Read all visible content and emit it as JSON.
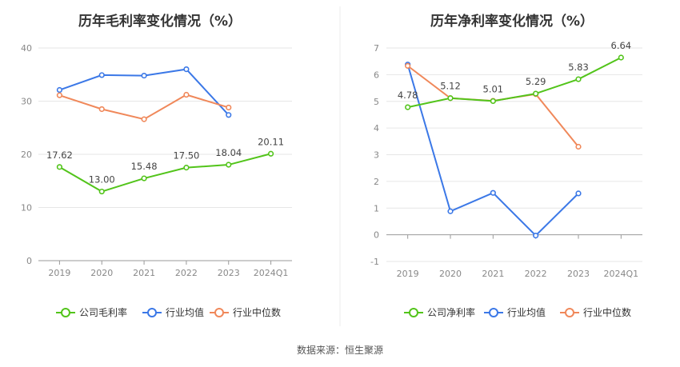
{
  "source": "数据来源：恒生聚源",
  "chart_data": [
    {
      "type": "line",
      "title": "历年毛利率变化情况（%）",
      "categories": [
        "2019",
        "2020",
        "2021",
        "2022",
        "2023",
        "2024Q1"
      ],
      "ylim": [
        0,
        40
      ],
      "yticks": [
        "0",
        "10",
        "20",
        "30",
        "40"
      ],
      "grid": true,
      "legend_position": "bottom",
      "series": [
        {
          "name": "公司毛利率",
          "color": "#52c41a",
          "values": [
            17.62,
            13.0,
            15.48,
            17.5,
            18.04,
            20.11
          ],
          "labels": [
            "17.62",
            "13.00",
            "15.48",
            "17.50",
            "18.04",
            "20.11"
          ]
        },
        {
          "name": "行业均值",
          "color": "#3b78e7",
          "values": [
            32.1,
            34.9,
            34.8,
            36.0,
            27.4,
            null
          ],
          "labels": []
        },
        {
          "name": "行业中位数",
          "color": "#f0885a",
          "values": [
            31.1,
            28.5,
            26.6,
            31.2,
            28.8,
            null
          ],
          "labels": []
        }
      ]
    },
    {
      "type": "line",
      "title": "历年净利率变化情况（%）",
      "categories": [
        "2019",
        "2020",
        "2021",
        "2022",
        "2023",
        "2024Q1"
      ],
      "ylim": [
        -1,
        7
      ],
      "yticks": [
        "-1",
        "0",
        "1",
        "2",
        "3",
        "4",
        "5",
        "6",
        "7"
      ],
      "grid": true,
      "legend_position": "bottom",
      "series": [
        {
          "name": "公司净利率",
          "color": "#52c41a",
          "values": [
            4.78,
            5.12,
            5.01,
            5.29,
            5.83,
            6.64
          ],
          "labels": [
            "4.78",
            "5.12",
            "5.01",
            "5.29",
            "5.83",
            "6.64"
          ]
        },
        {
          "name": "行业均值",
          "color": "#3b78e7",
          "values": [
            6.38,
            0.88,
            1.57,
            -0.03,
            1.55,
            null
          ],
          "labels": []
        },
        {
          "name": "行业中位数",
          "color": "#f0885a",
          "values": [
            6.33,
            5.12,
            5.02,
            5.27,
            3.3,
            null
          ],
          "labels": []
        }
      ]
    }
  ]
}
